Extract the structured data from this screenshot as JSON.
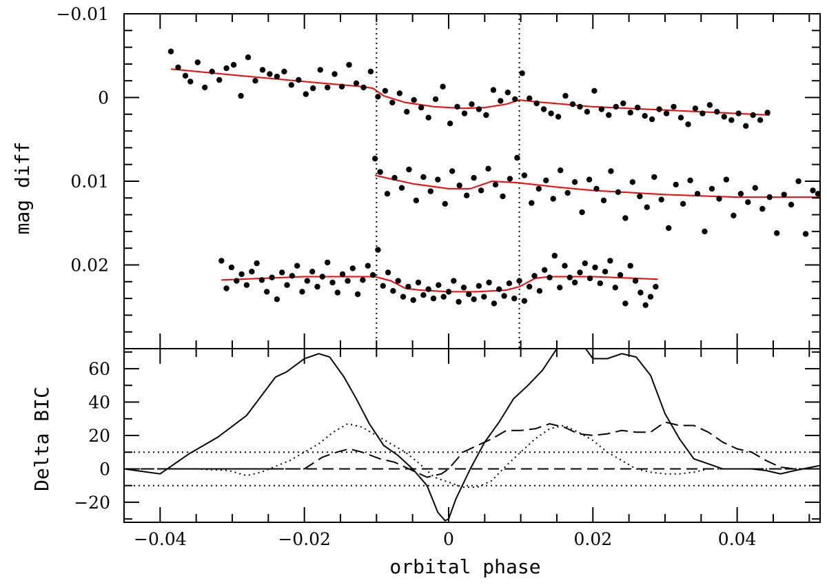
{
  "chart_data": [
    {
      "type": "scatter",
      "panel": "top",
      "ylabel": "mag diff",
      "xlim": [
        -0.045,
        0.0515
      ],
      "ylim": [
        -0.01,
        0.03
      ],
      "y_inverted": true,
      "x_tick_values": [
        -0.04,
        -0.02,
        0,
        0.02,
        0.04
      ],
      "y_tick_values": [
        -0.01,
        0,
        0.01,
        0.02
      ],
      "y_tick_labels": [
        "−0.01",
        "0",
        "0.01",
        "0.02"
      ],
      "vertical_reference_lines": [
        -0.01,
        0.0098
      ],
      "point_color": "#000000",
      "model_color": "#ff0000",
      "series": [
        {
          "x_range": [
            -0.0385,
            0.0445
          ],
          "model": {
            "x": [
              -0.0385,
              -0.03,
              -0.02,
              -0.012,
              -0.0105,
              -0.009,
              -0.006,
              -0.002,
              0.002,
              0.005,
              0.008,
              0.0098,
              0.012,
              0.02,
              0.03,
              0.0445
            ],
            "y": [
              -0.0034,
              -0.0027,
              -0.0019,
              -0.0013,
              -0.0011,
              -0.0002,
              0.0006,
              0.0011,
              0.0013,
              0.0012,
              0.0008,
              0.0003,
              0.0005,
              0.0011,
              0.0015,
              0.0021
            ]
          },
          "points_x": [
            -0.0385,
            -0.0375,
            -0.0365,
            -0.0358,
            -0.0348,
            -0.0338,
            -0.0328,
            -0.0318,
            -0.0308,
            -0.0298,
            -0.0288,
            -0.0278,
            -0.0268,
            -0.0258,
            -0.0248,
            -0.0238,
            -0.0228,
            -0.0218,
            -0.0208,
            -0.0198,
            -0.0188,
            -0.0178,
            -0.0168,
            -0.0158,
            -0.0148,
            -0.0138,
            -0.0128,
            -0.0118,
            -0.0108,
            -0.0098,
            -0.0088,
            -0.0078,
            -0.0068,
            -0.0058,
            -0.0048,
            -0.0038,
            -0.0028,
            -0.0018,
            -0.0008,
            0.0002,
            0.0012,
            0.0022,
            0.0032,
            0.0042,
            0.0052,
            0.0062,
            0.0072,
            0.0082,
            0.0092,
            0.0102,
            0.0112,
            0.0122,
            0.0132,
            0.0142,
            0.0152,
            0.0162,
            0.0172,
            0.0182,
            0.0192,
            0.0202,
            0.0212,
            0.0222,
            0.0232,
            0.0242,
            0.0252,
            0.0262,
            0.0272,
            0.0282,
            0.0292,
            0.0302,
            0.0312,
            0.0322,
            0.0332,
            0.0342,
            0.0352,
            0.0362,
            0.0372,
            0.0382,
            0.0392,
            0.0402,
            0.0412,
            0.0422,
            0.0432,
            0.0442
          ],
          "points_y": [
            -0.0055,
            -0.0036,
            -0.0026,
            -0.0019,
            -0.0042,
            -0.0012,
            -0.0031,
            -0.0021,
            -0.0035,
            -0.0039,
            -0.0002,
            -0.0048,
            -0.002,
            -0.0033,
            -0.0028,
            -0.0025,
            -0.0031,
            -0.0015,
            -0.0021,
            -0.0004,
            -0.0011,
            -0.0033,
            -0.0012,
            -0.0028,
            -0.0013,
            -0.0039,
            -0.0017,
            -0.0012,
            -0.0031,
            -0.0001,
            -0.0008,
            0.0006,
            -0.0005,
            0.0017,
            0.0003,
            0.0012,
            0.0024,
            0.0002,
            -0.0013,
            0.0031,
            0.0011,
            0.0019,
            0.0008,
            0.0014,
            0.0021,
            -0.0009,
            0.0004,
            -0.0006,
            0.0002,
            -0.0029,
            0.0001,
            0.0007,
            0.0014,
            0.0019,
            0.0023,
            -0.0002,
            0.0008,
            0.0011,
            0.0017,
            -0.0008,
            0.0014,
            0.0021,
            0.0011,
            0.0007,
            0.0018,
            0.0012,
            0.0022,
            0.0026,
            0.0014,
            0.0019,
            0.0011,
            0.0024,
            0.0032,
            0.0013,
            0.0019,
            0.0009,
            0.0017,
            0.0023,
            0.0027,
            0.0019,
            0.0034,
            0.0021,
            0.0027,
            0.0018
          ]
        },
        {
          "x_range": [
            -0.0102,
            0.0515
          ],
          "model": {
            "x": [
              -0.0102,
              -0.005,
              0,
              0.003,
              0.006,
              0.0098,
              0.015,
              0.02,
              0.03,
              0.04,
              0.0515
            ],
            "y": [
              0.0093,
              0.0103,
              0.0109,
              0.0109,
              0.01,
              0.0102,
              0.0107,
              0.0111,
              0.0116,
              0.0119,
              0.0119
            ]
          },
          "points_x": [
            -0.0102,
            -0.0095,
            -0.0085,
            -0.0075,
            -0.0065,
            -0.0055,
            -0.0045,
            -0.0035,
            -0.0025,
            -0.0015,
            -0.0005,
            0.0005,
            0.0015,
            0.0025,
            0.0035,
            0.0045,
            0.0055,
            0.0065,
            0.0075,
            0.0085,
            0.0095,
            0.0105,
            0.0115,
            0.0125,
            0.0135,
            0.0145,
            0.0155,
            0.0165,
            0.0175,
            0.0185,
            0.0195,
            0.0205,
            0.0215,
            0.0225,
            0.0235,
            0.0245,
            0.0255,
            0.0265,
            0.0275,
            0.0285,
            0.0295,
            0.0305,
            0.0315,
            0.0325,
            0.0335,
            0.0345,
            0.0355,
            0.0365,
            0.0375,
            0.0385,
            0.0395,
            0.0405,
            0.0415,
            0.0425,
            0.0435,
            0.0445,
            0.0455,
            0.0465,
            0.0475,
            0.0485,
            0.0495,
            0.0505,
            0.0512
          ],
          "points_y": [
            0.0073,
            0.0089,
            0.0115,
            0.0096,
            0.0108,
            0.0086,
            0.0123,
            0.0095,
            0.0112,
            0.0098,
            0.0127,
            0.0088,
            0.0105,
            0.0117,
            0.0096,
            0.0111,
            0.0085,
            0.0104,
            0.0118,
            0.0097,
            0.0072,
            0.0093,
            0.0126,
            0.0109,
            0.0099,
            0.0121,
            0.0087,
            0.0114,
            0.0101,
            0.0137,
            0.0098,
            0.0109,
            0.0123,
            0.0088,
            0.0113,
            0.0144,
            0.0101,
            0.0118,
            0.0131,
            0.0095,
            0.0122,
            0.0156,
            0.0104,
            0.0127,
            0.0099,
            0.0115,
            0.016,
            0.0109,
            0.0121,
            0.0098,
            0.0141,
            0.0115,
            0.0125,
            0.0108,
            0.0133,
            0.0119,
            0.0162,
            0.0116,
            0.0128,
            0.01,
            0.0163,
            0.0111,
            0.0115
          ]
        },
        {
          "x_range": [
            -0.0315,
            0.029
          ],
          "model": {
            "x": [
              -0.0315,
              -0.02,
              -0.012,
              -0.0102,
              -0.008,
              -0.006,
              -0.004,
              0,
              0.004,
              0.008,
              0.0098,
              0.012,
              0.014,
              0.02,
              0.029
            ],
            "y": [
              0.0218,
              0.0214,
              0.0214,
              0.0214,
              0.0219,
              0.0228,
              0.023,
              0.0232,
              0.0232,
              0.023,
              0.0226,
              0.0216,
              0.0214,
              0.0214,
              0.0217
            ]
          },
          "points_x": [
            -0.0315,
            -0.0308,
            -0.0301,
            -0.0294,
            -0.0287,
            -0.028,
            -0.0273,
            -0.0266,
            -0.0259,
            -0.0252,
            -0.0245,
            -0.0238,
            -0.0231,
            -0.0224,
            -0.0217,
            -0.021,
            -0.0203,
            -0.0196,
            -0.0189,
            -0.0182,
            -0.0175,
            -0.0168,
            -0.0161,
            -0.0154,
            -0.0147,
            -0.014,
            -0.0133,
            -0.0126,
            -0.0119,
            -0.0112,
            -0.0105,
            -0.0098,
            -0.0091,
            -0.0084,
            -0.0077,
            -0.007,
            -0.0063,
            -0.0056,
            -0.0049,
            -0.0042,
            -0.0035,
            -0.0028,
            -0.0021,
            -0.0014,
            -0.0007,
            0.0,
            0.0007,
            0.0014,
            0.0021,
            0.0028,
            0.0035,
            0.0042,
            0.0049,
            0.0056,
            0.0063,
            0.007,
            0.0077,
            0.0084,
            0.0091,
            0.0098,
            0.0105,
            0.0112,
            0.0119,
            0.0126,
            0.0133,
            0.014,
            0.0147,
            0.0154,
            0.0161,
            0.0168,
            0.0175,
            0.0182,
            0.0189,
            0.0196,
            0.0203,
            0.021,
            0.0217,
            0.0224,
            0.0231,
            0.0238,
            0.0245,
            0.0252,
            0.0259,
            0.0266,
            0.0273,
            0.028,
            0.0287
          ],
          "points_y": [
            0.0195,
            0.0228,
            0.0203,
            0.0219,
            0.0211,
            0.0224,
            0.0208,
            0.0198,
            0.0218,
            0.0232,
            0.0215,
            0.0241,
            0.0209,
            0.0224,
            0.0213,
            0.0201,
            0.0232,
            0.0219,
            0.0208,
            0.0226,
            0.0214,
            0.0197,
            0.0221,
            0.0233,
            0.0211,
            0.0219,
            0.0204,
            0.0235,
            0.0218,
            0.0201,
            0.0212,
            0.0182,
            0.0225,
            0.0209,
            0.0231,
            0.0219,
            0.0238,
            0.0226,
            0.0242,
            0.0221,
            0.0236,
            0.0229,
            0.024,
            0.0224,
            0.0238,
            0.0232,
            0.0219,
            0.0244,
            0.0227,
            0.0235,
            0.0241,
            0.0225,
            0.0238,
            0.0221,
            0.0246,
            0.0229,
            0.0237,
            0.0222,
            0.024,
            0.0219,
            0.0243,
            0.0226,
            0.0213,
            0.0231,
            0.0206,
            0.0215,
            0.0189,
            0.0227,
            0.0201,
            0.0215,
            0.0221,
            0.0209,
            0.0198,
            0.0216,
            0.0203,
            0.0222,
            0.0208,
            0.0195,
            0.0227,
            0.0212,
            0.0246,
            0.0201,
            0.0219,
            0.0233,
            0.0248,
            0.0238,
            0.0226
          ]
        }
      ]
    },
    {
      "type": "line",
      "panel": "bottom",
      "xlabel": "orbital phase",
      "ylabel": "Delta BIC",
      "xlim": [
        -0.045,
        0.0515
      ],
      "ylim": [
        -32,
        72
      ],
      "x_tick_values": [
        -0.04,
        -0.02,
        0,
        0.02,
        0.04
      ],
      "x_tick_labels": [
        "−0.04",
        "−0.02",
        "0",
        "0.02",
        "0.04"
      ],
      "y_tick_values": [
        -20,
        0,
        20,
        40,
        60
      ],
      "y_tick_labels": [
        "−20",
        "0",
        "20",
        "40",
        "60"
      ],
      "horizontal_reference_lines": [
        {
          "y": 10,
          "style": "dotted"
        },
        {
          "y": 0,
          "style": "dashed"
        },
        {
          "y": -10,
          "style": "dotted"
        }
      ],
      "series": [
        {
          "style": "solid",
          "x": [
            -0.045,
            -0.04,
            -0.036,
            -0.032,
            -0.028,
            -0.024,
            -0.0225,
            -0.02,
            -0.018,
            -0.0165,
            -0.0145,
            -0.0128,
            -0.011,
            -0.009,
            -0.007,
            -0.005,
            -0.003,
            -0.0015,
            -0.0005,
            0.0,
            0.001,
            0.003,
            0.005,
            0.007,
            0.009,
            0.011,
            0.013,
            0.015,
            0.017,
            0.0185,
            0.02,
            0.022,
            0.024,
            0.026,
            0.028,
            0.03,
            0.032,
            0.034,
            0.036,
            0.038,
            0.04,
            0.042,
            0.044,
            0.046,
            0.048,
            0.0515
          ],
          "y": [
            0,
            -3,
            9,
            19,
            32,
            55,
            58,
            66,
            69,
            67,
            55,
            42,
            27,
            14,
            8,
            0,
            -10,
            -26,
            -31,
            -30,
            -18,
            0,
            16,
            28,
            42,
            50,
            59,
            72,
            80,
            75,
            66,
            66,
            69,
            67,
            56,
            33,
            18,
            6,
            3,
            0,
            0,
            0,
            -1,
            -3,
            -1,
            2
          ]
        },
        {
          "style": "dashed",
          "x": [
            -0.045,
            -0.04,
            -0.035,
            -0.03,
            -0.025,
            -0.02,
            -0.0175,
            -0.0155,
            -0.0138,
            -0.012,
            -0.0095,
            -0.0075,
            -0.0055,
            -0.003,
            -0.001,
            0.0,
            0.002,
            0.004,
            0.006,
            0.008,
            0.01,
            0.012,
            0.014,
            0.016,
            0.018,
            0.02,
            0.022,
            0.024,
            0.026,
            0.028,
            0.03,
            0.032,
            0.034,
            0.036,
            0.038,
            0.04,
            0.042,
            0.044,
            0.046,
            0.048,
            0.0515
          ],
          "y": [
            0,
            0,
            0,
            0,
            0,
            0,
            7,
            10,
            12,
            10,
            6,
            4,
            0,
            -5,
            -3,
            0,
            10,
            14,
            18,
            23,
            23,
            24,
            27,
            25,
            21,
            20,
            21,
            23,
            22,
            22,
            28,
            26,
            26,
            22,
            16,
            12,
            10,
            5,
            1,
            0,
            0
          ]
        },
        {
          "style": "dotted",
          "x": [
            -0.045,
            -0.04,
            -0.035,
            -0.0305,
            -0.028,
            -0.026,
            -0.022,
            -0.02,
            -0.018,
            -0.016,
            -0.014,
            -0.012,
            -0.01,
            -0.008,
            -0.006,
            -0.004,
            -0.002,
            0.0,
            0.002,
            0.004,
            0.006,
            0.008,
            0.01,
            0.012,
            0.014,
            0.016,
            0.018,
            0.02,
            0.022,
            0.024,
            0.026,
            0.028,
            0.03,
            0.032,
            0.034,
            0.036,
            0.038,
            0.04,
            0.045,
            0.0515
          ],
          "y": [
            0,
            0,
            0,
            -1,
            -4,
            -2,
            5,
            10,
            15,
            22,
            27,
            25,
            20,
            15,
            10,
            3,
            -5,
            -8,
            -11,
            -11,
            -7,
            2,
            10,
            18,
            24,
            26,
            22,
            17,
            10,
            5,
            0,
            -2,
            -3,
            -3,
            -2,
            0,
            0,
            0,
            0,
            0
          ]
        }
      ]
    }
  ]
}
